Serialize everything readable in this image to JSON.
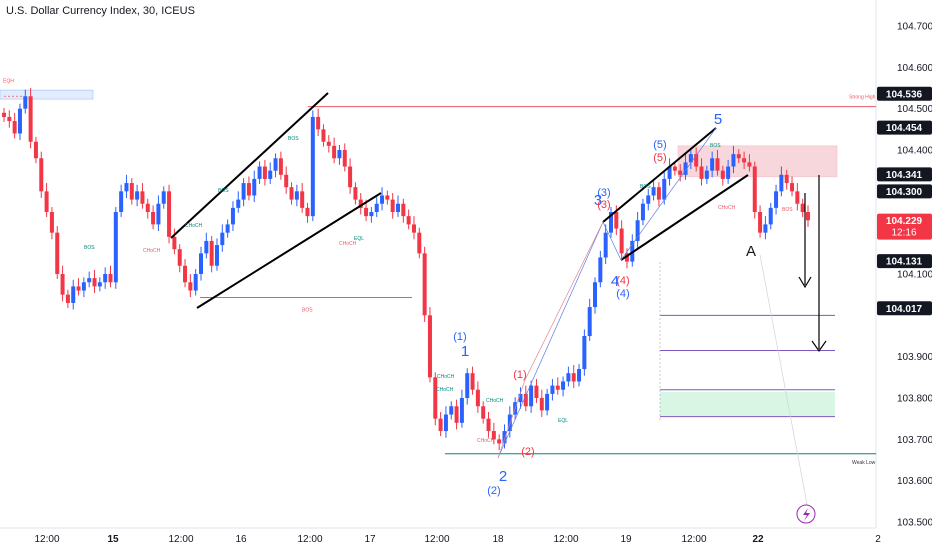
{
  "header": {
    "title": "U.S. Dollar Currency Index, 30, ICEUS"
  },
  "chart_data": {
    "type": "candlestick",
    "y_axis": {
      "ticks": [
        "104.700",
        "104.600",
        "104.500",
        "104.400",
        "104.100",
        "103.900",
        "103.800",
        "103.700",
        "103.600",
        "103.500"
      ],
      "ylim": [
        103.5,
        104.73
      ]
    },
    "x_axis": {
      "ticks": [
        "12:00",
        "15",
        "16",
        "12:00",
        "17",
        "12:00",
        "18",
        "12:00",
        "19",
        "12:00",
        "22",
        "12:00",
        "2"
      ],
      "bold_ticks": [
        "15",
        "22"
      ]
    },
    "price_tags": [
      {
        "text": "104.536",
        "value": 104.536,
        "style": "dark"
      },
      {
        "text": "104.454",
        "value": 104.454,
        "style": "dark"
      },
      {
        "text": "104.341",
        "value": 104.341,
        "style": "dark"
      },
      {
        "text": "104.300",
        "value": 104.3,
        "style": "dark"
      },
      {
        "text": "104.229",
        "value": 104.229,
        "style": "red",
        "countdown": "12:16"
      },
      {
        "text": "104.131",
        "value": 104.131,
        "style": "dark"
      },
      {
        "text": "104.017",
        "value": 104.017,
        "style": "dark"
      }
    ],
    "levels": [
      {
        "label": "Strong High",
        "value": 104.5
      },
      {
        "label": "Weak Low",
        "value": 103.665
      },
      {
        "label": "EQH",
        "value": 104.53
      }
    ],
    "structure_labels": [
      "BOS",
      "CHoCH",
      "EQL",
      "EQH"
    ],
    "wave_labels": {
      "main": [
        "1",
        "2",
        "3",
        "4",
        "5",
        "A"
      ],
      "minor": [
        "(1)",
        "(2)",
        "(3)",
        "(4)",
        "(5)"
      ]
    },
    "colors": {
      "up": "#2962ff",
      "down": "#f23645",
      "sr": "#e85a6a",
      "structure": "#00897b",
      "zone": "#f8d7dc",
      "target_zone": "#d9f5e3",
      "target_line": "#7e57c2"
    },
    "candles_close": [
      104.48,
      104.47,
      104.44,
      104.5,
      104.53,
      104.42,
      104.38,
      104.3,
      104.25,
      104.2,
      104.1,
      104.05,
      104.03,
      104.07,
      104.06,
      104.08,
      104.09,
      104.07,
      104.08,
      104.1,
      104.08,
      104.25,
      104.3,
      104.32,
      104.28,
      104.3,
      104.27,
      104.25,
      104.22,
      104.27,
      104.3,
      104.19,
      104.16,
      104.12,
      104.08,
      104.06,
      104.1,
      104.15,
      104.18,
      104.12,
      104.17,
      104.2,
      104.22,
      104.26,
      104.28,
      104.32,
      104.29,
      104.33,
      104.36,
      104.33,
      104.35,
      104.38,
      104.34,
      104.31,
      104.28,
      104.3,
      104.26,
      104.24,
      104.48,
      104.45,
      104.42,
      104.41,
      104.38,
      104.4,
      104.36,
      104.31,
      104.28,
      104.26,
      104.24,
      104.25,
      104.27,
      104.29,
      104.28,
      104.25,
      104.27,
      104.24,
      104.22,
      104.2,
      104.15,
      104.0,
      103.85,
      103.75,
      103.72,
      103.76,
      103.78,
      103.74,
      103.8,
      103.86,
      103.82,
      103.78,
      103.75,
      103.72,
      103.7,
      103.69,
      103.72,
      103.76,
      103.79,
      103.81,
      103.78,
      103.83,
      103.8,
      103.77,
      103.81,
      103.83,
      103.82,
      103.84,
      103.86,
      103.84,
      103.87,
      103.95,
      104.02,
      104.08,
      104.14,
      104.2,
      104.25,
      104.21,
      104.15,
      104.13,
      104.18,
      104.23,
      104.27,
      104.29,
      104.31,
      104.28,
      104.33,
      104.36,
      104.35,
      104.34,
      104.37,
      104.39,
      104.36,
      104.33,
      104.35,
      104.38,
      104.35,
      104.33,
      104.36,
      104.39,
      104.38,
      104.37,
      104.36,
      104.25,
      104.2,
      104.22,
      104.26,
      104.3,
      104.34,
      104.32,
      104.3,
      104.27,
      104.25,
      104.23
    ]
  }
}
